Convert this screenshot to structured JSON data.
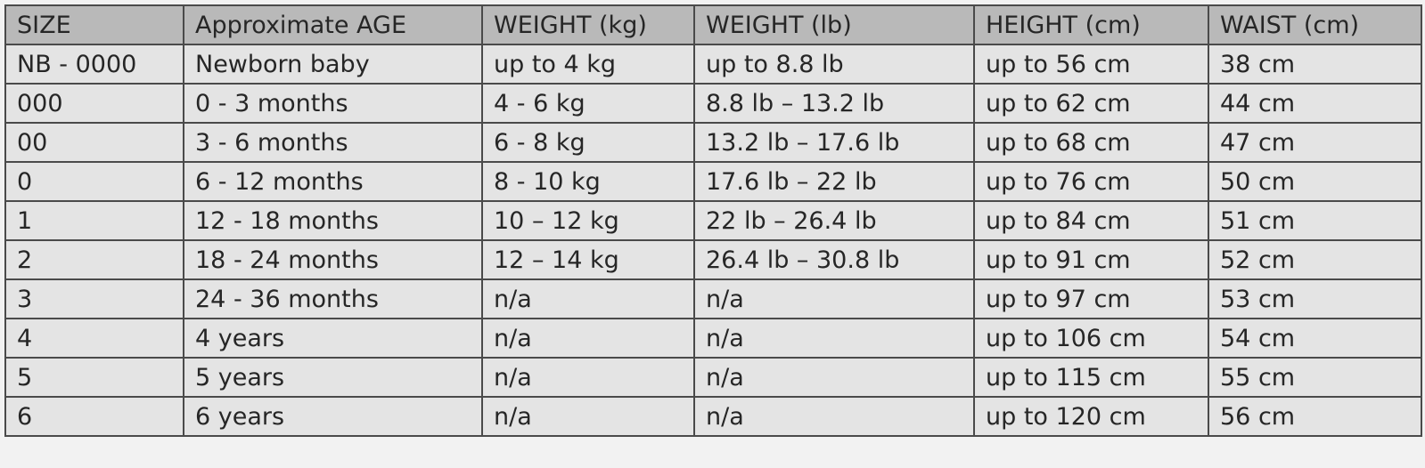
{
  "table": {
    "header": [
      "SIZE",
      "Approximate AGE",
      "WEIGHT (kg)",
      "WEIGHT (lb)",
      "HEIGHT (cm)",
      "WAIST (cm)"
    ],
    "rows": [
      [
        "NB - 0000",
        "Newborn baby",
        "up to 4 kg",
        "up to 8.8 lb",
        "up to 56 cm",
        "38 cm"
      ],
      [
        "000",
        "0 - 3 months",
        "4 - 6 kg",
        "8.8 lb – 13.2 lb",
        "up to 62 cm",
        "44 cm"
      ],
      [
        "00",
        "3 - 6 months",
        "6 - 8 kg",
        "13.2 lb – 17.6 lb",
        "up to 68 cm",
        "47 cm"
      ],
      [
        "0",
        "6 - 12 months",
        "8 - 10 kg",
        "17.6 lb – 22 lb",
        "up to 76 cm",
        "50 cm"
      ],
      [
        "1",
        "12 - 18 months",
        "10 – 12 kg",
        "22 lb – 26.4 lb",
        "up to 84 cm",
        "51 cm"
      ],
      [
        "2",
        "18 - 24 months",
        "12 – 14 kg",
        "26.4 lb – 30.8 lb",
        "up to 91 cm",
        "52 cm"
      ],
      [
        "3",
        "24 - 36 months",
        "n/a",
        "n/a",
        "up to 97 cm",
        "53 cm"
      ],
      [
        "4",
        "4 years",
        "n/a",
        "n/a",
        "up to 106 cm",
        "54 cm"
      ],
      [
        "5",
        "5 years",
        "n/a",
        "n/a",
        "up to 115 cm",
        "55 cm"
      ],
      [
        "6",
        "6 years",
        "n/a",
        "n/a",
        "up to 120 cm",
        "56 cm"
      ]
    ]
  }
}
